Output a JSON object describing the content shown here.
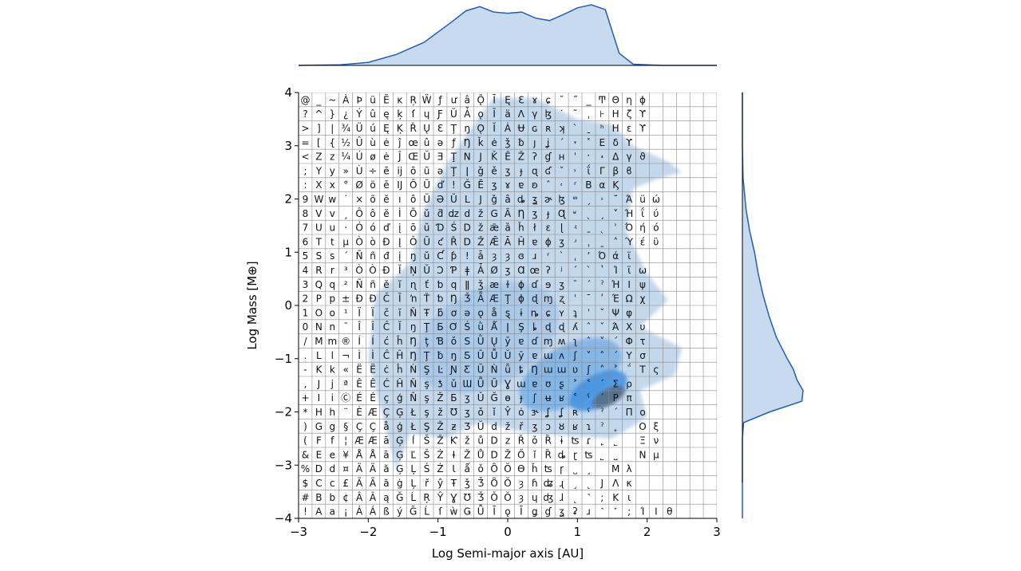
{
  "chart_data": {
    "type": "kde-joint",
    "title": "",
    "xlabel": "Log Semi-major axis [AU]",
    "ylabel": "Log Mass [M⊕]",
    "xlim": [
      -3,
      3
    ],
    "ylim": [
      -4,
      4
    ],
    "xticks": [
      "−3",
      "−2",
      "−1",
      "0",
      "1",
      "2",
      "3"
    ],
    "yticks": [
      "−4",
      "−3",
      "−2",
      "−1",
      "0",
      "1",
      "2",
      "3",
      "4"
    ],
    "grid": true,
    "colors": {
      "fill_light": "#c4d8ec",
      "fill_mid": "#5aa2e6",
      "fill_dark": "#1c7fe0",
      "core": "#566a80",
      "marginal_line": "#1f5fb4",
      "marginal_fill": "#c7daee",
      "grid": "#8a8a8a"
    },
    "density_levels": [
      {
        "level": 1,
        "center": [
          -0.1,
          -0.2
        ],
        "extent": "broad envelope"
      },
      {
        "level": 2,
        "center": [
          -0.3,
          -0.6
        ],
        "semi_axes": [
          1.1,
          0.9
        ]
      },
      {
        "level": 3,
        "center": [
          0.9,
          -1.3
        ],
        "semi_axes": [
          0.8,
          0.55
        ]
      },
      {
        "level": 4,
        "center": [
          1.3,
          -1.6
        ],
        "semi_axes": [
          0.45,
          0.3
        ]
      },
      {
        "level": 5,
        "center": [
          1.45,
          -1.72
        ],
        "semi_axes": [
          0.26,
          0.15
        ]
      }
    ],
    "marginal_x": {
      "x": [
        -3,
        -2.4,
        -2,
        -1.6,
        -1.2,
        -0.8,
        -0.6,
        -0.4,
        -0.2,
        0,
        0.2,
        0.4,
        0.6,
        0.8,
        1.0,
        1.2,
        1.4,
        1.6,
        1.8,
        2.2,
        3
      ],
      "density": [
        0,
        0.01,
        0.05,
        0.18,
        0.38,
        0.72,
        0.9,
        0.97,
        0.88,
        0.86,
        0.88,
        0.78,
        0.74,
        0.84,
        0.95,
        1.0,
        0.92,
        0.2,
        0.02,
        0,
        0
      ]
    },
    "marginal_y": {
      "y": [
        -4,
        -2.5,
        -2.2,
        -2.0,
        -1.8,
        -1.6,
        -1.4,
        -1.2,
        -1.0,
        -0.6,
        -0.2,
        0.2,
        0.6,
        1.0,
        1.4,
        1.8,
        2.4,
        3.0,
        3.6,
        4
      ],
      "density": [
        0,
        0,
        0.02,
        0.45,
        0.98,
        1.0,
        0.9,
        0.84,
        0.74,
        0.56,
        0.44,
        0.34,
        0.26,
        0.2,
        0.12,
        0.06,
        0.01,
        0,
        0,
        0
      ]
    },
    "grid_text_rows": [
      "@_~ÀÞüĔĸŖẄƒưâǬĪ Ę Ɛɤɕ ˘ ˝ _ Ͳ Θ η ϕ",
      "?^}¿Ýû ę ķ ſ ɥ ƑŬ Ǡ ǫ Ī ä Λ γ ɮ ˙ ˜ ˌ ⊦ Η ζ ϒ",
      ">]|¾Üú Ę Ķ Ř Ų Ɛ Ţ ŋ ǪĬ Ȧ Ʉ ɢ ʀ ʞ ˋ ˍ ʰ Ηε ϒ",
      "=[{½Ûùė ĵ œ û ə ƒ Ŋ ǩ ė ǯ ƀ ȷ ʝ ˊ ˕ ˟ Ε δ ϒ",
      "<Zz¼Úøė Ĵ Œ Ŭ Ǝ Ţ NJ Ǩ Ě Ž ʔ ɠ ʜ ˈ ˑ ˔ Δ γ ϑ",
      ";Yy»Ù÷ ē ĳ ō ũ ǝ Ţ ǀ ǧ ě ʒ ɟ ɋ ʛ ˇ ˒ ΐ Γ β ϐ",
      ":Xx°Øöē Ĳ Ō Ũ ď ǃ Ǧ Ȇ ʒ ɤ ɐ ʚ ˆ ˓ ʳ Β α Ϗ",
      "9Ww˙×õĕ ı ô Ũ Ə Ŭ LJ ǧ â ȡ ʓ ɚ ɮ ʷ ˏ ˒ ˘ Ά ü ώ",
      "8Vv¸Ôôĕ İ Ō ŭ ƌ ǳ dž G Ȃ Ƞ ʒ ɟ Ɋ ʶ ˎ ˏ ˅ Ή ΐ ύ",
      "7Uu·Óóď į ō ŭ Ɗ Ś Dž ǣ ȁ ȟ ł ɛ ɭ ʵ ˍ ˎ ʾ Ό ή ό",
      "6Ttµ ÒòĐ Į ǑŨ ƈ Ř DŽ Ǣ Ā Ȟ ɐ ɸ ʒ ʴ ˌ ˍ ˄ Ύ έ ϋ",
      "5Ss´Ññđ į ŋ ŭ Ƈ ƥ ! ǡ ȝ ȝ ɞ ɹ ʳ ˋ ˌ ʼ Ό ά ϊ",
      "4Rr³ ÒÒĐ Ĭ ŅŬ Ɔ Ƥ ǂ Ǡ Ø ʒ Ɑ œ ʔ ʲ ˊ ˋ ʽ Ί ϊ ω",
      "3Qq²Ññĕ ĭ ɳ ť ƅ q ǁ ǯ æ ɫ ɸ ɗ ɘ ʒ ˉ ˊ ˀ Ή Ι ψ",
      "2Pp±ÐÐČ Ĭ ŉ Ť ƅ Ŋ Ǯ Ǟ Æ Ţ ɸ ɖ ɱ ʐ ˈ ˉ ʹ Έ Ω χ",
      "1Oo¹ÏÏč ĭ Ň Ŧ ƃ ơ ǝ ǫ å ȿ ɨ ȵ ɕ ʏ ʇ ˈ ˇ Ψ φ",
      "0Nn¯ÎÎĈ Ĭ ŋ Ţ Ƃ Ơ Ś ǜ Ǻ ǀ Ş ȴ ɖ ɖ ʎ ˆ ˇ Ά Χ υ",
      "/Mm®ÍÍć ĥ Ŋ ţ Ɓ ǒ S Ǜ Ų ȳ ɐ ɗ ɱ ʍ ʅ ˆ ˅ ΄ Φ τ",
      ".Ll¬ÌÌĈ Ĥ Ŋ Ţ ƀ ŋ Ƽ Ū Ǚ Ŭ ȳ ɐ ɯ ʌ ʃ ˅ ˄ ΄ Υ σ",
      "-Kk«ËËċ ĥ Ń Ş Ŀ Ɲ Ƹ Ŭ Ǹ ǖ ȶ Ŋ ɯ ɯ ʋ ʃ ˄ ˃ ΅ Τ ς",
      ",Jjª ÊÊĊ Ĥ Ň ş ƾ ǔ Ɯ Ǖ Ŭ Ɣ ɯ ɐ ʊ ʂ ˃ ˂ ΄ Σ ρ",
      "+IiⒸÉÉç ģ Ň ş Ž Ƃ ʒ Ǔ Ğ ɵ ɟ ʃ ʉ ʁ ˂ ˁ ΄ Ρ π",
      "*Hh¨ÈÆÇ Ģ Ł ş ž Ʊ ʒ ǒ ǐ Ŷ ȯ ɝ ʆ ʆ ʀ ˁ ˀ ΄ Π ο",
      ")Gg§ÇÇå ģ Ł Ş Ž ƶ Ʒ Ŭ dž ř ʒ ɔ ȣ ʁ ɿ ˀ ˿ ΃ Ο ξ",
      "(Ff¦ÆÆā Ģ ĺ Š Ž Ƙ ž ů Dz Ř ǒ Ȑ ɨ ʦ ɾ ˿ ˾ ΂ Ξ ν",
      "&Ee¥ÅÅā Ģ Ľ Š Ż Ɨ Ž Ů DŽ Ő ǐ Ȑ ȡ ɽ ʦ ˾ ˽ ΁ Ν μ",
      "%Dd¤ÄÄă Ģ Ļ Ś Ż Ɩ ǻ ǒ Ȏ Ŏ Ɵ ȟ ʦ ɼ ˽ ˼ ΀ Μ λ",
      "$Cc£ÃÃă ġ Ļ ř ŷ Ŧ ǯ Ǯ Ȏ Ŏ ȝ ɦ ʥ ɻ ˼ ˻ Ϳ Λ κ",
      "#Bb¢ÂÂą Ğ Ĺ Ŗ Ŷ Ɣ Ʊ Ǯ Ǒ Ŏ ȝ ɥ ʤ ɺ ˻ ˺ ; Κ ι",
      "!Aa¡ÁÁß ý Ğ Ĺ ſ ẁ Ǥ Ǚ Ī ǫ Ī ǥ ɠ ʓ ʡ ɹ ˺ ˹ ; Ί Ι θ"
    ]
  }
}
